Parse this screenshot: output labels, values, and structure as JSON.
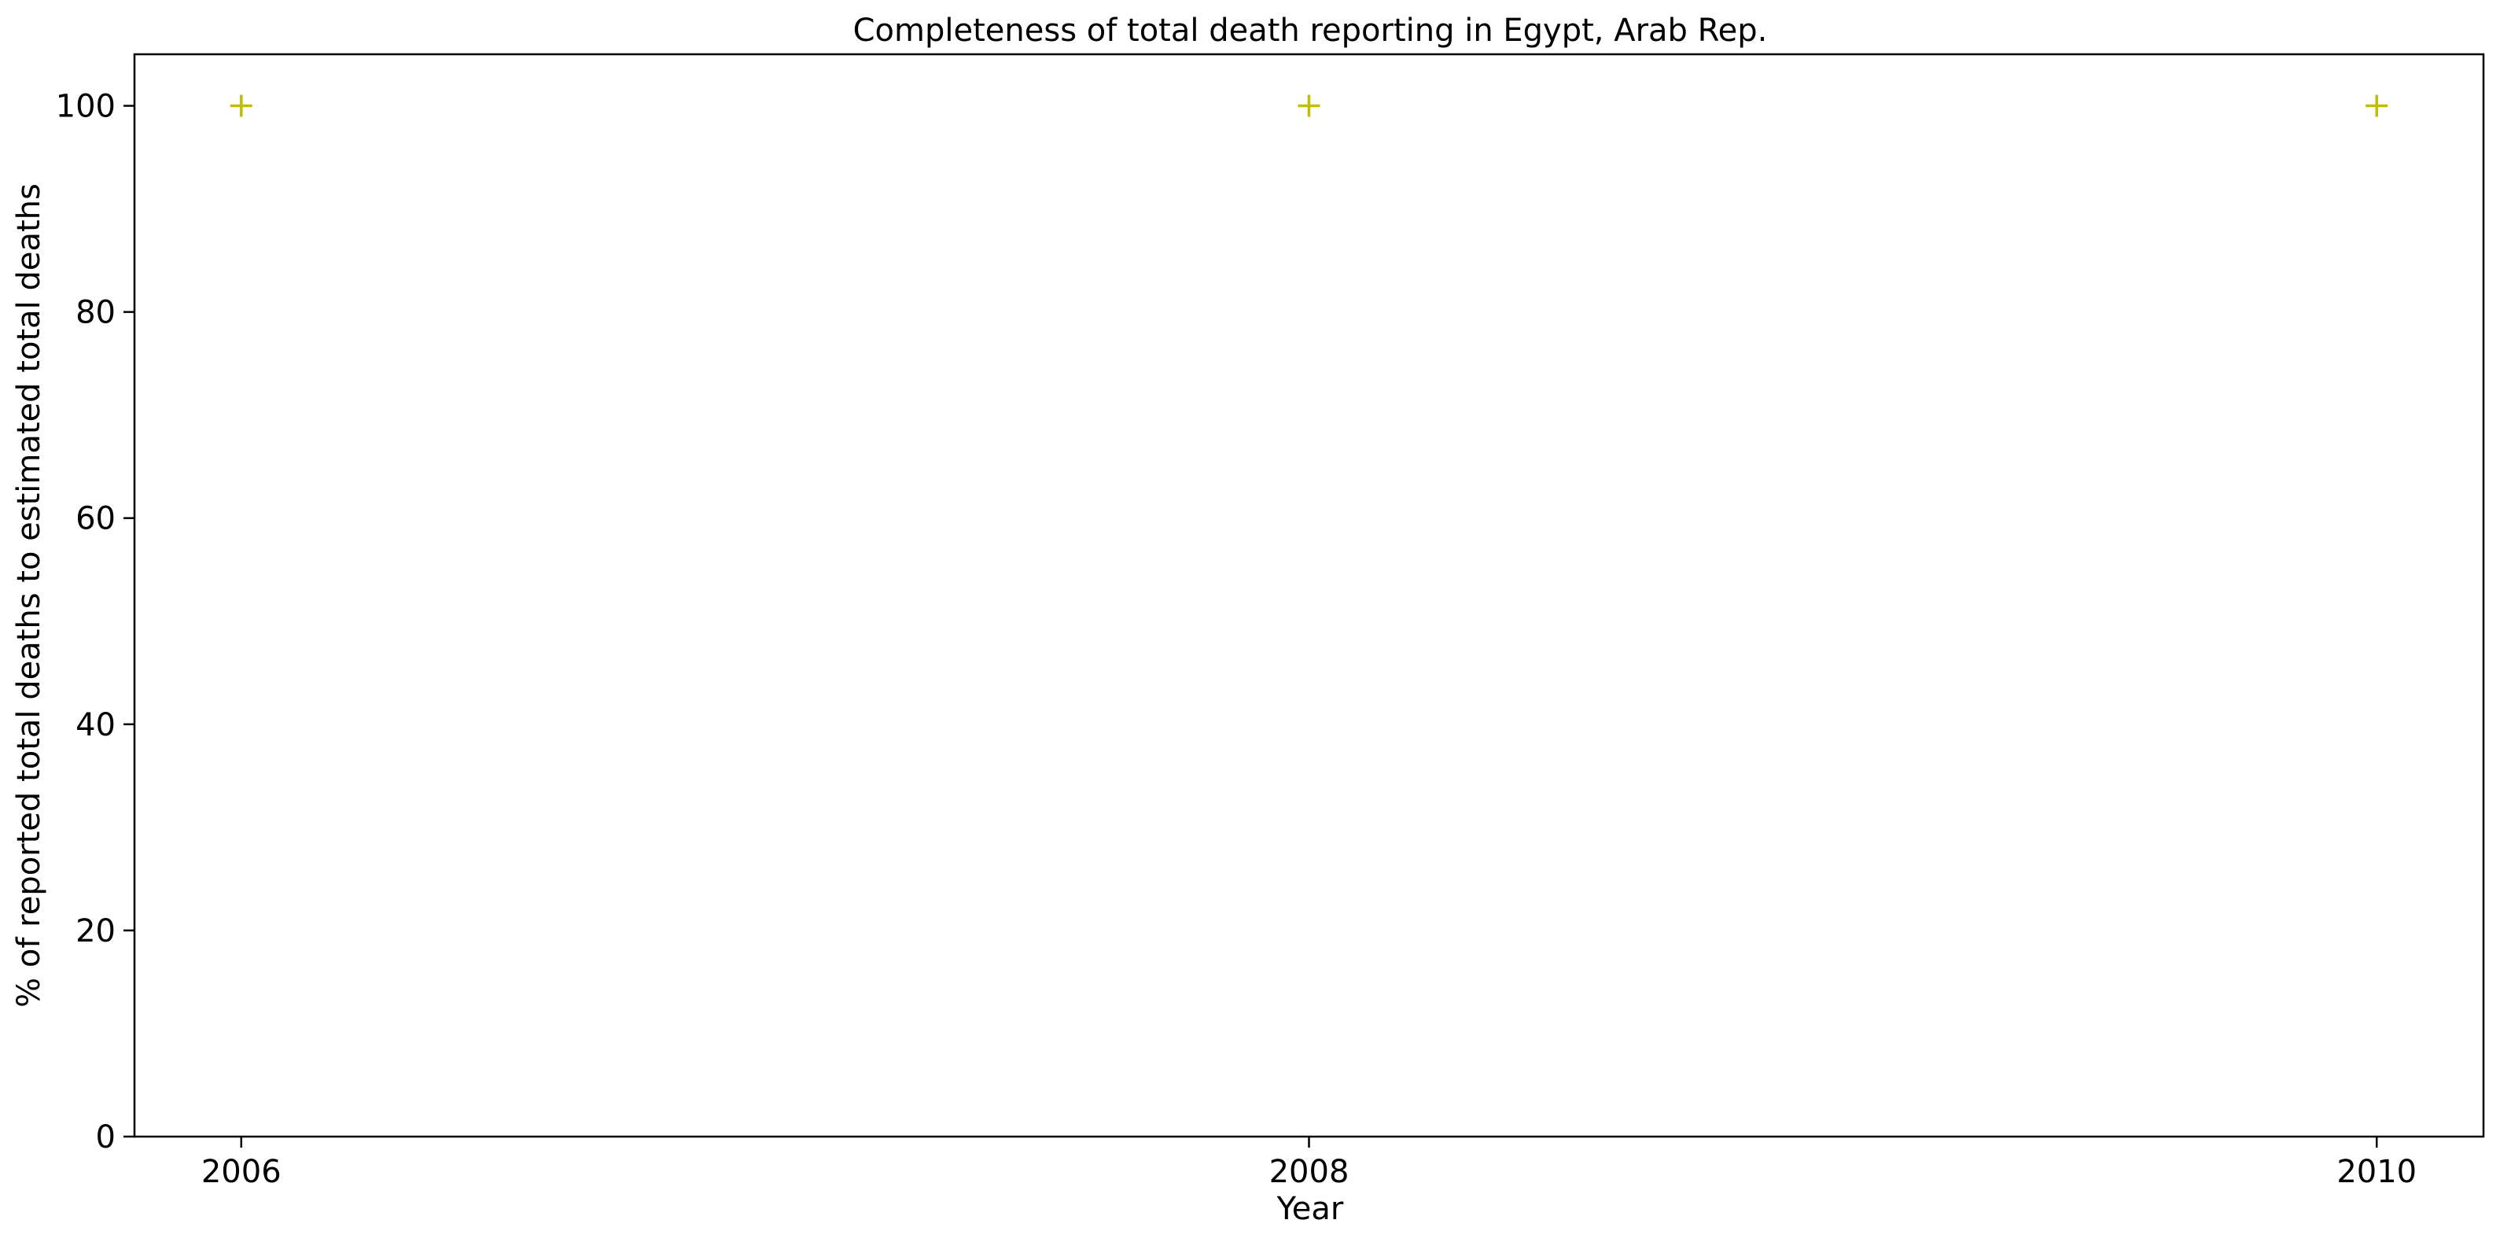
{
  "chart_data": {
    "type": "scatter",
    "title": "Completeness of total death reporting in Egypt, Arab Rep.",
    "xlabel": "Year",
    "ylabel": "% of reported total deaths to estimated total deaths",
    "x": [
      2006,
      2008,
      2010
    ],
    "y": [
      100,
      100,
      100
    ],
    "xlim": [
      2005.8,
      2010.2
    ],
    "ylim": [
      0,
      105
    ],
    "xticks": [
      "2006",
      "2008",
      "2010"
    ],
    "yticks": [
      "0",
      "20",
      "40",
      "60",
      "80",
      "100"
    ],
    "marker": "plus",
    "color": "#bfbf00",
    "grid": false,
    "legend": "none"
  }
}
